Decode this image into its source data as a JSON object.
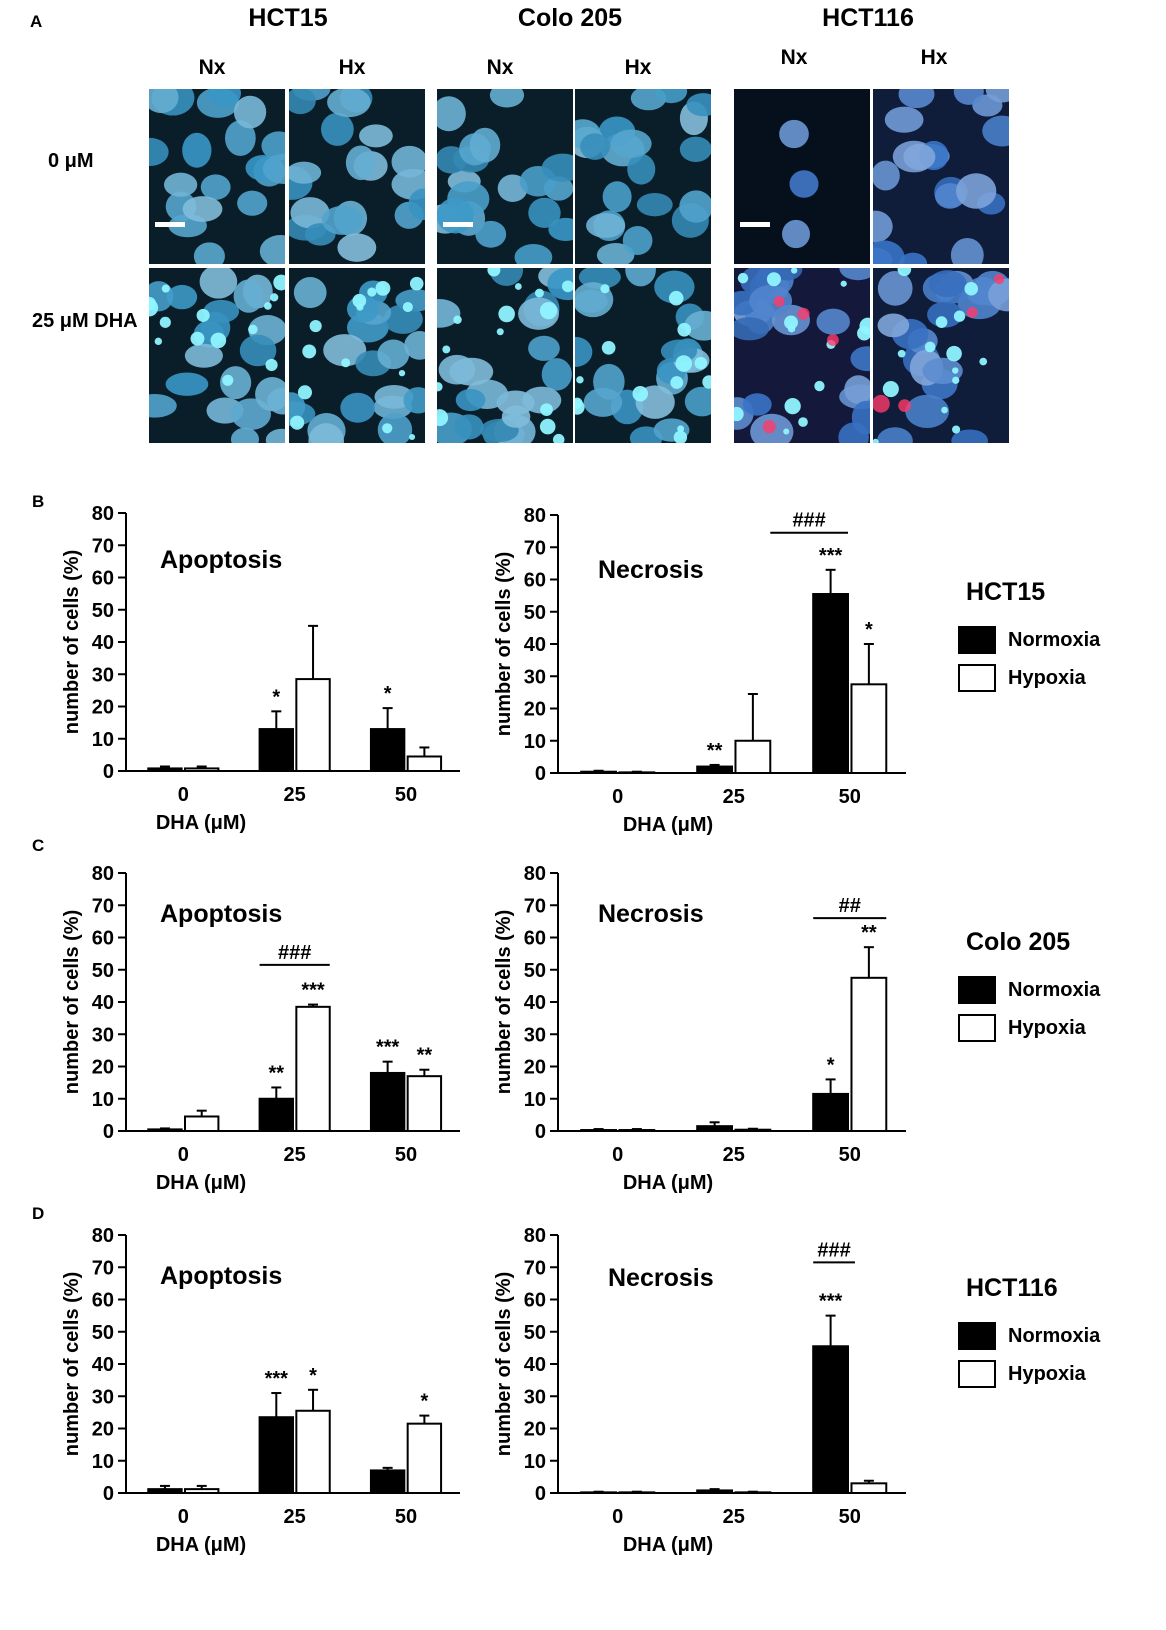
{
  "panel_labels": [
    "A",
    "B",
    "C",
    "D"
  ],
  "microscopy": {
    "cell_lines": [
      "HCT15",
      "Colo 205",
      "HCT116"
    ],
    "conditions": [
      "Nx",
      "Hx"
    ],
    "rows": [
      "0 μM",
      "25 μM DHA"
    ]
  },
  "colors": {
    "normoxia": "#000000",
    "hypoxia": "#ffffff",
    "nuclei": "#4f9fd0",
    "stain_bg": "#0a1e2a"
  },
  "legends": [
    {
      "title": "HCT15",
      "items": [
        "Normoxia",
        "Hypoxia"
      ]
    },
    {
      "title": "Colo 205",
      "items": [
        "Normoxia",
        "Hypoxia"
      ]
    },
    {
      "title": "HCT116",
      "items": [
        "Normoxia",
        "Hypoxia"
      ]
    }
  ],
  "chart_data": [
    {
      "type": "bar",
      "panel": "B",
      "title": "Apoptosis",
      "xlabel": "DHA (μM)",
      "ylabel": "number of cells (%)",
      "ylim": [
        0,
        80
      ],
      "yticks": [
        "0",
        "10",
        "20",
        "30",
        "40",
        "50",
        "60",
        "70",
        "80"
      ],
      "categories": [
        "0",
        "25",
        "50"
      ],
      "series": [
        {
          "name": "Normoxia",
          "values": [
            0.8,
            13,
            13
          ],
          "errors": [
            0.6,
            5.5,
            6.5
          ],
          "stars": [
            "",
            "*",
            "*"
          ]
        },
        {
          "name": "Hypoxia",
          "values": [
            0.8,
            28.5,
            4.5
          ],
          "errors": [
            0.6,
            16.5,
            2.8
          ],
          "stars": [
            "",
            "",
            ""
          ]
        }
      ],
      "brackets": []
    },
    {
      "type": "bar",
      "panel": "B",
      "title": "Necrosis",
      "xlabel": "DHA (μM)",
      "ylabel": "number of cells (%)",
      "ylim": [
        0,
        80
      ],
      "yticks": [
        "0",
        "10",
        "20",
        "30",
        "40",
        "50",
        "60",
        "70",
        "80"
      ],
      "categories": [
        "0",
        "25",
        "50"
      ],
      "series": [
        {
          "name": "Normoxia",
          "values": [
            0.4,
            2,
            55.5
          ],
          "errors": [
            0.3,
            0.5,
            7.5
          ],
          "stars": [
            "",
            "**",
            "***"
          ]
        },
        {
          "name": "Hypoxia",
          "values": [
            0.2,
            10,
            27.5
          ],
          "errors": [
            0.2,
            14.5,
            12.5
          ],
          "stars": [
            "",
            "",
            "*"
          ]
        }
      ],
      "brackets": [
        {
          "label": "###",
          "from": [
            1,
            1
          ],
          "to": [
            2,
            0
          ],
          "y": 74.5
        }
      ]
    },
    {
      "type": "bar",
      "panel": "C",
      "title": "Apoptosis",
      "xlabel": "DHA (μM)",
      "ylabel": "number of cells (%)",
      "ylim": [
        0,
        80
      ],
      "yticks": [
        "0",
        "10",
        "20",
        "30",
        "40",
        "50",
        "60",
        "70",
        "80"
      ],
      "categories": [
        "0",
        "25",
        "50"
      ],
      "series": [
        {
          "name": "Normoxia",
          "values": [
            0.5,
            10,
            18
          ],
          "errors": [
            0.3,
            3.5,
            3.5
          ],
          "stars": [
            "",
            "**",
            "***"
          ]
        },
        {
          "name": "Hypoxia",
          "values": [
            4.5,
            38.5,
            17
          ],
          "errors": [
            1.8,
            0.7,
            2
          ],
          "stars": [
            "",
            "***",
            "**"
          ]
        }
      ],
      "brackets": [
        {
          "label": "###",
          "from": [
            1,
            0
          ],
          "to": [
            1,
            1
          ],
          "y": 51.5
        }
      ]
    },
    {
      "type": "bar",
      "panel": "C",
      "title": "Necrosis",
      "xlabel": "DHA (μM)",
      "ylabel": "number of cells (%)",
      "ylim": [
        0,
        80
      ],
      "yticks": [
        "0",
        "10",
        "20",
        "30",
        "40",
        "50",
        "60",
        "70",
        "80"
      ],
      "categories": [
        "0",
        "25",
        "50"
      ],
      "series": [
        {
          "name": "Normoxia",
          "values": [
            0.3,
            1.5,
            11.5
          ],
          "errors": [
            0.3,
            1.2,
            4.5
          ],
          "stars": [
            "",
            "",
            "*"
          ]
        },
        {
          "name": "Hypoxia",
          "values": [
            0.3,
            0.4,
            47.5
          ],
          "errors": [
            0.3,
            0.3,
            9.5
          ],
          "stars": [
            "",
            "",
            "**"
          ]
        }
      ],
      "brackets": [
        {
          "label": "##",
          "from": [
            2,
            0
          ],
          "to": [
            2,
            1
          ],
          "y": 66
        }
      ]
    },
    {
      "type": "bar",
      "panel": "D",
      "title": "Apoptosis",
      "xlabel": "DHA (μM)",
      "ylabel": "number of cells (%)",
      "ylim": [
        0,
        80
      ],
      "yticks": [
        "0",
        "10",
        "20",
        "30",
        "40",
        "50",
        "60",
        "70",
        "80"
      ],
      "categories": [
        "0",
        "25",
        "50"
      ],
      "series": [
        {
          "name": "Normoxia",
          "values": [
            1.2,
            23.5,
            7
          ],
          "errors": [
            1,
            7.5,
            0.8
          ],
          "stars": [
            "",
            "***",
            ""
          ]
        },
        {
          "name": "Hypoxia",
          "values": [
            1.2,
            25.5,
            21.5
          ],
          "errors": [
            1,
            6.5,
            2.5
          ],
          "stars": [
            "",
            "*",
            "*"
          ]
        }
      ],
      "brackets": []
    },
    {
      "type": "bar",
      "panel": "D",
      "title": "Necrosis",
      "xlabel": "DHA (μM)",
      "ylabel": "number of cells (%)",
      "ylim": [
        0,
        80
      ],
      "yticks": [
        "0",
        "10",
        "20",
        "30",
        "40",
        "50",
        "60",
        "70",
        "80"
      ],
      "categories": [
        "0",
        "25",
        "50"
      ],
      "series": [
        {
          "name": "Normoxia",
          "values": [
            0.2,
            0.8,
            45.5
          ],
          "errors": [
            0.2,
            0.4,
            9.5
          ],
          "stars": [
            "",
            "",
            "***"
          ]
        },
        {
          "name": "Hypoxia",
          "values": [
            0.2,
            0.2,
            3
          ],
          "errors": [
            0.2,
            0.2,
            0.8
          ],
          "stars": [
            "",
            "",
            ""
          ]
        }
      ],
      "brackets": [
        {
          "label": "###",
          "from": [
            2,
            0
          ],
          "to": [
            2,
            0.6
          ],
          "y": 71.5
        }
      ]
    }
  ]
}
